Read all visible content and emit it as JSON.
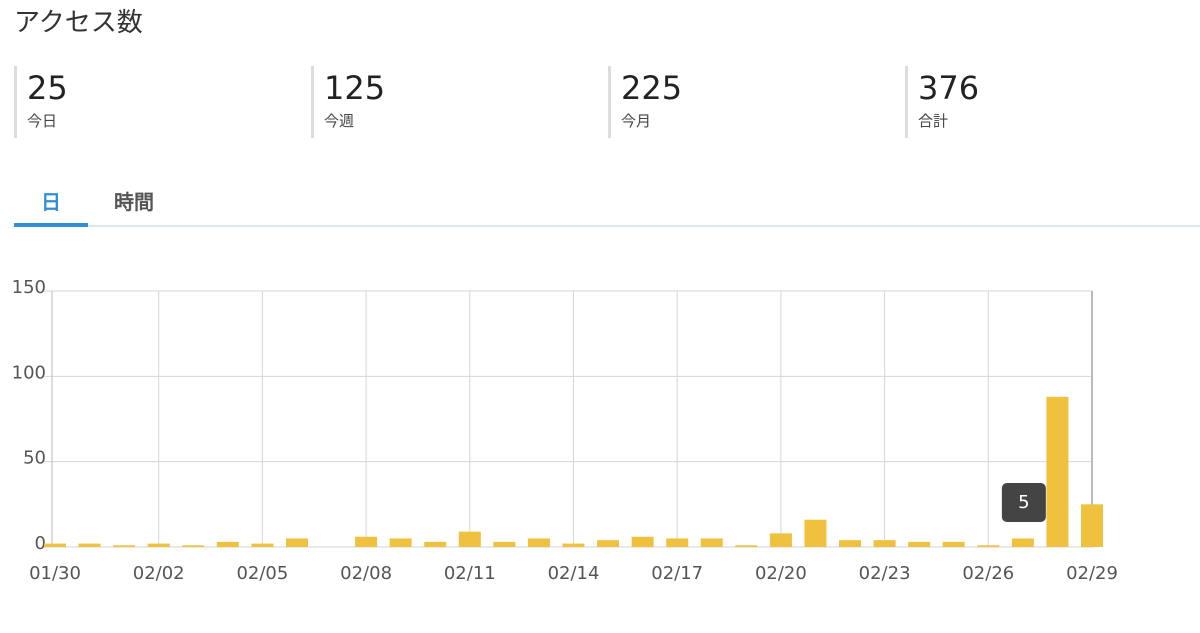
{
  "header": {
    "title": "アクセス数"
  },
  "stats": [
    {
      "value": 25,
      "label": "今日"
    },
    {
      "value": 125,
      "label": "今週"
    },
    {
      "value": 225,
      "label": "今月"
    },
    {
      "value": 376,
      "label": "合計"
    }
  ],
  "tabs": [
    "日",
    "時間"
  ],
  "chart_data": {
    "type": "bar",
    "categories": [
      "01/30",
      null,
      null,
      "02/02",
      null,
      null,
      "02/05",
      null,
      null,
      "02/08",
      null,
      null,
      "02/11",
      null,
      null,
      "02/14",
      null,
      null,
      "02/17",
      null,
      null,
      "02/20",
      null,
      null,
      "02/23",
      null,
      null,
      "02/26",
      null,
      null,
      "02/29"
    ],
    "values": [
      2,
      2,
      1,
      2,
      1,
      3,
      2,
      5,
      0,
      6,
      5,
      3,
      9,
      3,
      5,
      2,
      4,
      6,
      5,
      5,
      1,
      8,
      16,
      4,
      4,
      3,
      3,
      1,
      5,
      88,
      25
    ],
    "color": "#efc13f",
    "ylim": [
      0,
      150
    ],
    "yticks": [
      0,
      50,
      100,
      150
    ],
    "grid": true
  }
}
